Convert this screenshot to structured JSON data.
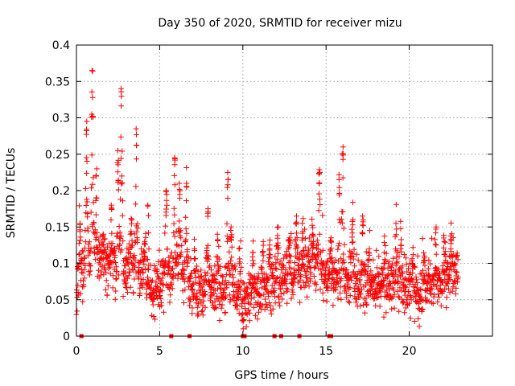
{
  "chart_data": {
    "type": "scatter",
    "title": "Day 350 of 2020, SRMTID for receiver mizu",
    "xlabel": "GPS time / hours",
    "ylabel": "SRMTID / TECUs",
    "xlim": [
      0,
      25
    ],
    "ylim": [
      0,
      0.4
    ],
    "xticks": [
      0,
      5,
      10,
      15,
      20
    ],
    "xtick_labels": [
      "0",
      "5",
      "10",
      "15",
      "20"
    ],
    "yticks": [
      0,
      0.05,
      0.1,
      0.15,
      0.2,
      0.25,
      0.3,
      0.35,
      0.4
    ],
    "ytick_labels": [
      "0",
      "0.05",
      "0.1",
      "0.15",
      "0.2",
      "0.25",
      "0.3",
      "0.35",
      "0.4"
    ],
    "grid": true,
    "marker": "plus",
    "series_color": "#ff0000",
    "zero_value_times": [
      0.3,
      5.7,
      6.8,
      10.0,
      10.1,
      11.9,
      12.3,
      13.4,
      15.2,
      15.3
    ],
    "baseline_profile": [
      [
        0.0,
        0.06
      ],
      [
        0.5,
        0.1
      ],
      [
        1.0,
        0.11
      ],
      [
        1.5,
        0.1
      ],
      [
        2.0,
        0.1
      ],
      [
        2.5,
        0.095
      ],
      [
        3.0,
        0.09
      ],
      [
        3.5,
        0.09
      ],
      [
        4.0,
        0.085
      ],
      [
        4.5,
        0.06
      ],
      [
        5.0,
        0.07
      ],
      [
        5.5,
        0.085
      ],
      [
        6.0,
        0.09
      ],
      [
        6.5,
        0.08
      ],
      [
        7.0,
        0.06
      ],
      [
        7.5,
        0.06
      ],
      [
        8.0,
        0.065
      ],
      [
        8.5,
        0.055
      ],
      [
        9.0,
        0.065
      ],
      [
        9.5,
        0.06
      ],
      [
        10.0,
        0.05
      ],
      [
        10.5,
        0.06
      ],
      [
        11.0,
        0.06
      ],
      [
        11.5,
        0.065
      ],
      [
        12.0,
        0.075
      ],
      [
        12.5,
        0.08
      ],
      [
        13.0,
        0.075
      ],
      [
        13.5,
        0.09
      ],
      [
        14.0,
        0.1
      ],
      [
        14.5,
        0.1
      ],
      [
        15.0,
        0.08
      ],
      [
        15.5,
        0.075
      ],
      [
        16.0,
        0.07
      ],
      [
        16.5,
        0.085
      ],
      [
        17.0,
        0.07
      ],
      [
        17.5,
        0.065
      ],
      [
        18.0,
        0.065
      ],
      [
        18.5,
        0.07
      ],
      [
        19.0,
        0.08
      ],
      [
        19.5,
        0.07
      ],
      [
        20.0,
        0.065
      ],
      [
        20.5,
        0.06
      ],
      [
        21.0,
        0.07
      ],
      [
        21.5,
        0.07
      ],
      [
        22.0,
        0.075
      ],
      [
        22.5,
        0.085
      ],
      [
        22.9,
        0.09
      ]
    ],
    "peaks": [
      [
        0.2,
        0.155
      ],
      [
        0.6,
        0.295
      ],
      [
        0.95,
        0.365
      ],
      [
        1.2,
        0.23
      ],
      [
        1.6,
        0.14
      ],
      [
        2.1,
        0.18
      ],
      [
        2.5,
        0.255
      ],
      [
        2.7,
        0.34
      ],
      [
        3.3,
        0.16
      ],
      [
        3.6,
        0.285
      ],
      [
        4.1,
        0.13
      ],
      [
        4.3,
        0.18
      ],
      [
        5.4,
        0.2
      ],
      [
        5.9,
        0.245
      ],
      [
        6.2,
        0.21
      ],
      [
        6.6,
        0.21
      ],
      [
        7.1,
        0.12
      ],
      [
        7.9,
        0.175
      ],
      [
        8.5,
        0.14
      ],
      [
        9.1,
        0.225
      ],
      [
        9.3,
        0.15
      ],
      [
        9.8,
        0.12
      ],
      [
        10.6,
        0.115
      ],
      [
        11.2,
        0.13
      ],
      [
        11.6,
        0.12
      ],
      [
        12.1,
        0.15
      ],
      [
        12.8,
        0.135
      ],
      [
        13.2,
        0.165
      ],
      [
        13.6,
        0.155
      ],
      [
        14.2,
        0.14
      ],
      [
        14.6,
        0.225
      ],
      [
        15.3,
        0.135
      ],
      [
        15.8,
        0.215
      ],
      [
        16.0,
        0.26
      ],
      [
        16.6,
        0.16
      ],
      [
        17.2,
        0.165
      ],
      [
        17.6,
        0.12
      ],
      [
        18.5,
        0.115
      ],
      [
        19.2,
        0.155
      ],
      [
        19.5,
        0.125
      ],
      [
        20.2,
        0.1
      ],
      [
        20.9,
        0.11
      ],
      [
        21.6,
        0.15
      ],
      [
        22.1,
        0.13
      ],
      [
        22.5,
        0.12
      ]
    ],
    "sample_count": 1850
  }
}
